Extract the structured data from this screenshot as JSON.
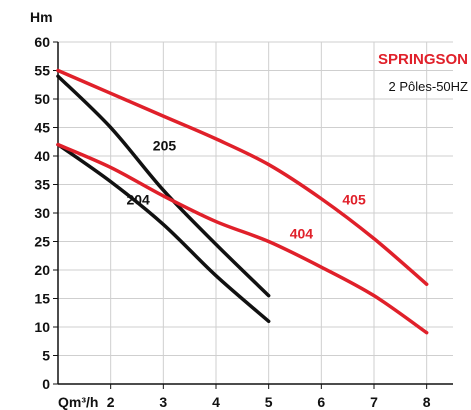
{
  "chart_data": {
    "type": "line",
    "ylabel": "Hm",
    "xlabel": "Qm³/h",
    "xlim": [
      1,
      8.5
    ],
    "ylim": [
      0,
      60
    ],
    "x_ticks": [
      "2",
      "3",
      "4",
      "5",
      "6",
      "7",
      "8"
    ],
    "y_ticks": [
      "0",
      "5",
      "10",
      "15",
      "20",
      "25",
      "30",
      "35",
      "40",
      "45",
      "50",
      "55",
      "60"
    ],
    "grid": true,
    "brand": "SPRINGSON",
    "subtitle": "2 Pôles-50HZ",
    "series": [
      {
        "name": "204",
        "color": "#111111",
        "points": [
          [
            1,
            42
          ],
          [
            2,
            35.5
          ],
          [
            3,
            28
          ],
          [
            4,
            19
          ],
          [
            5,
            11
          ]
        ]
      },
      {
        "name": "205",
        "color": "#111111",
        "points": [
          [
            1,
            54
          ],
          [
            2,
            45
          ],
          [
            3,
            34
          ],
          [
            4,
            24.5
          ],
          [
            5,
            15.5
          ]
        ]
      },
      {
        "name": "404",
        "color": "#e0202a",
        "points": [
          [
            1,
            42
          ],
          [
            2,
            38
          ],
          [
            3,
            33
          ],
          [
            4,
            28.5
          ],
          [
            5,
            25
          ],
          [
            6,
            20.5
          ],
          [
            7,
            15.5
          ],
          [
            8,
            9
          ]
        ]
      },
      {
        "name": "405",
        "color": "#e0202a",
        "points": [
          [
            1,
            55
          ],
          [
            2,
            51
          ],
          [
            3,
            47
          ],
          [
            4,
            43
          ],
          [
            5,
            38.5
          ],
          [
            6,
            32.5
          ],
          [
            7,
            25.5
          ],
          [
            8,
            17.5
          ]
        ]
      }
    ],
    "labels": [
      {
        "text": "204",
        "x": 2.3,
        "y": 31.5,
        "color": "#111111"
      },
      {
        "text": "205",
        "x": 2.8,
        "y": 41,
        "color": "#111111"
      },
      {
        "text": "404",
        "x": 5.4,
        "y": 25.5,
        "color": "#e0202a"
      },
      {
        "text": "405",
        "x": 6.4,
        "y": 31.5,
        "color": "#e0202a"
      }
    ]
  }
}
